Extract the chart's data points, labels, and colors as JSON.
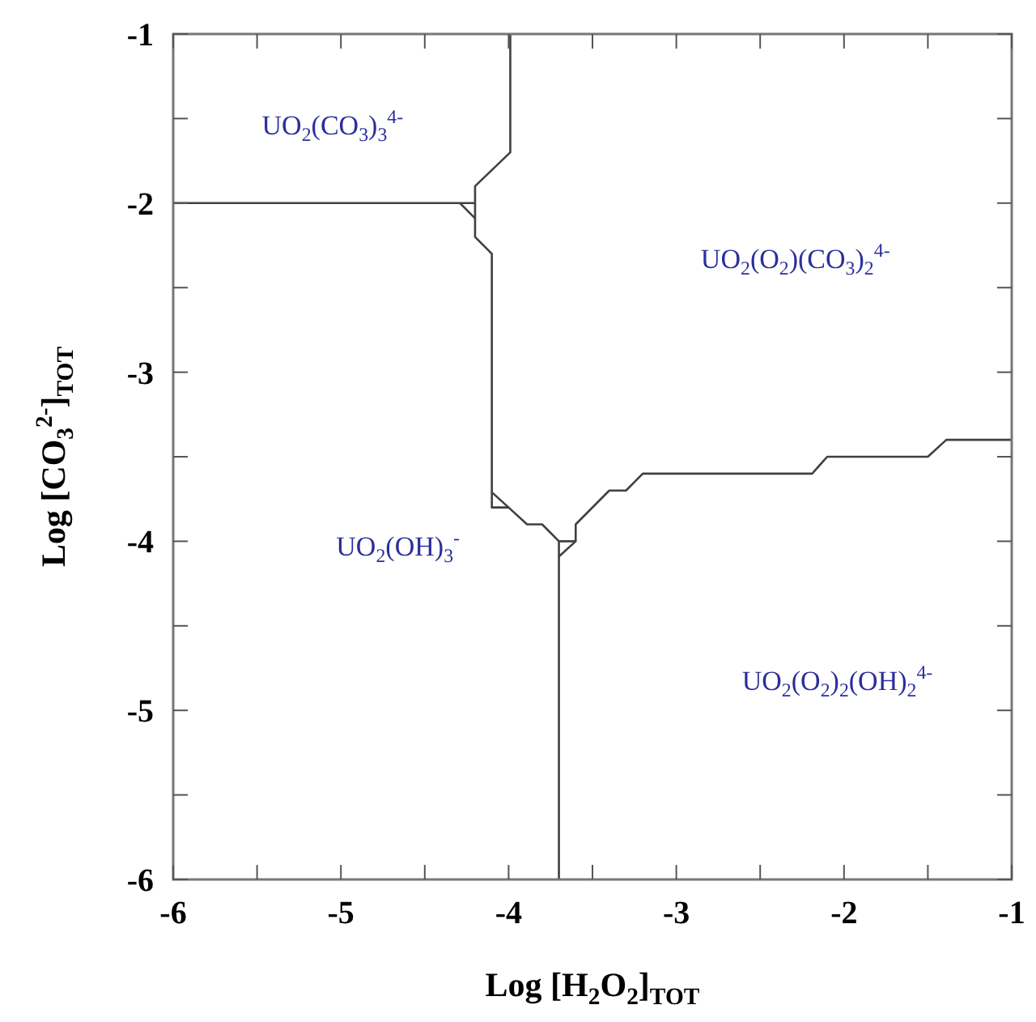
{
  "chart_data": {
    "type": "line",
    "xlabel": "Log [H$_{2}$O$_{2}$]$_{TOT}$",
    "ylabel": "Log [CO$_{3}$$^{2-}$]$_{TOT}$",
    "xlim": [
      -6,
      -1
    ],
    "ylim": [
      -6,
      -1
    ],
    "xticks": [
      -6,
      {
        "value": -5.5,
        "label": null
      },
      -5,
      {
        "value": -4.5,
        "label": null
      },
      -4,
      {
        "value": -3.5,
        "label": null
      },
      -3,
      {
        "value": -2.5,
        "label": null
      },
      -2,
      {
        "value": -1.5,
        "label": null
      },
      -1
    ],
    "yticks": [
      -6,
      {
        "value": -5.5,
        "label": null
      },
      -5,
      {
        "value": -4.5,
        "label": null
      },
      -4,
      {
        "value": -3.5,
        "label": null
      },
      -3,
      {
        "value": -2.5,
        "label": null
      },
      -2,
      {
        "value": -1.5,
        "label": null
      },
      -1
    ],
    "grid": false,
    "marker": "none",
    "line_style": "solid",
    "series": [
      {
        "color": "#404040",
        "x": [
          -6,
          -4.2
        ],
        "values": [
          -2,
          -2
        ]
      },
      {
        "color": "#404040",
        "x": [
          -4.29,
          -4.2
        ],
        "values": [
          -2,
          -2.09
        ]
      },
      {
        "color": "#404040",
        "x": [
          -3.99,
          -3.99,
          -4.2,
          -4.2,
          -4.1,
          -4.1,
          -4.0,
          -3.89,
          -3.8,
          -3.7,
          -3.7
        ],
        "values": [
          -1,
          -1.7,
          -1.9,
          -2.2,
          -2.3,
          -3.8,
          -3.8,
          -3.9,
          -3.9,
          -4.0,
          -6
        ]
      },
      {
        "color": "#404040",
        "x": [
          -4.1,
          -4.0
        ],
        "values": [
          -3.71,
          -3.8
        ]
      },
      {
        "color": "#404040",
        "x": [
          -3.7,
          -3.6,
          -3.6,
          -3.4,
          -3.3,
          -3.2,
          -2.19,
          -2.1,
          -1.5,
          -1.39,
          -1
        ],
        "values": [
          -4.0,
          -4.0,
          -3.9,
          -3.7,
          -3.7,
          -3.6,
          -3.6,
          -3.5,
          -3.5,
          -3.4,
          -3.4
        ]
      },
      {
        "color": "#404040",
        "x": [
          -3.7,
          -3.6
        ],
        "values": [
          -4.09,
          -4.0
        ]
      }
    ],
    "annotations": [
      "UO$_{2}$(CO$_{3}$)$_{3}$$^{4-}$",
      "UO$_{2}$(O$_{2}$)(CO$_{3}$)$_{2}$$^{4-}$",
      "UO$_{2}$(OH)$_{3}$$^{-}$",
      "UO$_{2}$(O$_{2}$)$_{2}$(OH)$_{2}$$^{4-}$"
    ]
  }
}
